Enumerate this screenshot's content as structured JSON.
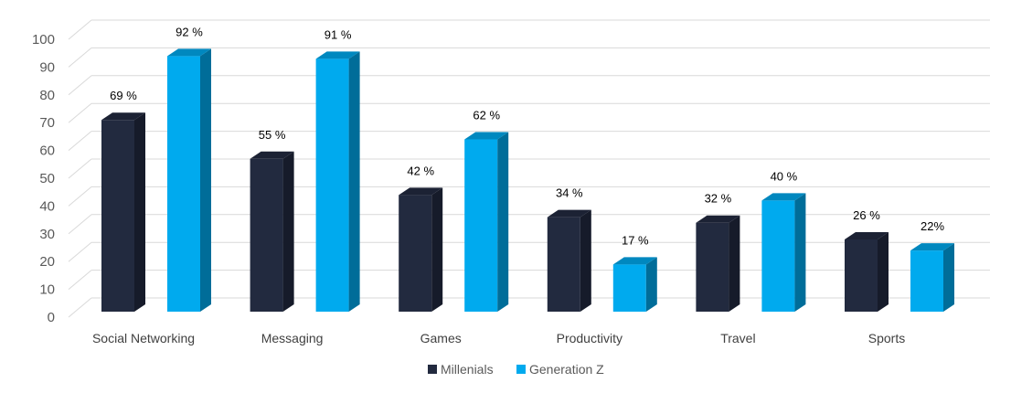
{
  "chart_data": {
    "type": "bar",
    "title": "",
    "xlabel": "",
    "ylabel": "",
    "ylim": [
      0,
      100
    ],
    "yticks": [
      0,
      10,
      20,
      30,
      40,
      50,
      60,
      70,
      80,
      90,
      100
    ],
    "grid": true,
    "legend_position": "bottom",
    "categories": [
      "Social Networking",
      "Messaging",
      "Games",
      "Productivity",
      "Travel",
      "Sports"
    ],
    "series": [
      {
        "name": "Millenials",
        "values": [
          69,
          55,
          42,
          34,
          32,
          26
        ],
        "labels": [
          "69 %",
          "55 %",
          "42 %",
          "34 %",
          "32 %",
          "26 %"
        ],
        "color": "#222a3f",
        "side": "#161b2a",
        "top": "#1c2234"
      },
      {
        "name": "Generation Z",
        "values": [
          92,
          91,
          62,
          17,
          40,
          22
        ],
        "labels": [
          "92 %",
          "91 %",
          "62 %",
          "17 %",
          "40 %",
          "22%"
        ],
        "color": "#00aaee",
        "side": "#006d99",
        "top": "#0088bf"
      }
    ]
  }
}
